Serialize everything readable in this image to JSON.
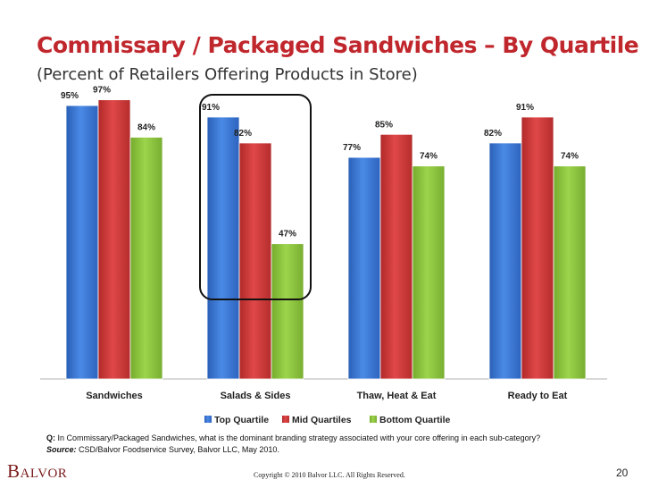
{
  "slide": {
    "title": "Commissary / Packaged Sandwiches – By Quartile",
    "subtitle": "(Percent of Retailers Offering Products in Store)",
    "question_label": "Q:",
    "question": " In Commissary/Packaged Sandwiches, what is the dominant branding strategy associated with your core offering in each sub-category?",
    "source_label": "Source:",
    "source": " CSD/Balvor Foodservice Survey, Balvor LLC, May 2010.",
    "logo_text": "Balvor",
    "copyright": "Copyright © 2010 Balvor LLC. All Rights Reserved.",
    "page_number": "20"
  },
  "chart_data": {
    "type": "bar",
    "categories": [
      "Sandwiches",
      "Salads & Sides",
      "Thaw, Heat & Eat",
      "Ready to Eat"
    ],
    "series": [
      {
        "name": "Top Quartile",
        "values": [
          95,
          91,
          77,
          82
        ],
        "color": "#3a78d4",
        "labels": [
          "95%",
          "91%",
          "77%",
          "82%"
        ]
      },
      {
        "name": "Mid Quartiles",
        "values": [
          97,
          82,
          85,
          91
        ],
        "color": "#d23b3b",
        "labels": [
          "97%",
          "82%",
          "85%",
          "91%"
        ]
      },
      {
        "name": "Bottom Quartile",
        "values": [
          84,
          47,
          74,
          74
        ],
        "color": "#8ec63f",
        "labels": [
          "84%",
          "47%",
          "74%",
          "74%"
        ]
      }
    ],
    "ylim": [
      0,
      100
    ],
    "grid": false,
    "legend": "bottom",
    "highlighted_category": "Salads & Sides"
  }
}
